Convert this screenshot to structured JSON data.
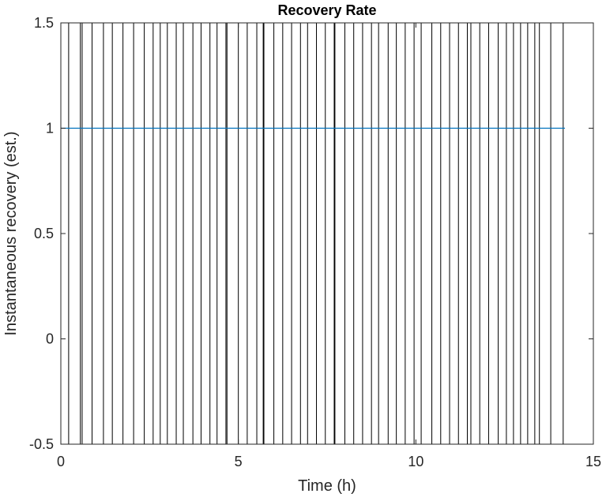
{
  "chart_data": {
    "type": "line",
    "title": "Recovery Rate",
    "xlabel": "Time (h)",
    "ylabel": "Instantaneous recovery (est.)",
    "xlim": [
      0,
      15
    ],
    "ylim": [
      -0.5,
      1.5
    ],
    "x_ticks": [
      0,
      5,
      10,
      15
    ],
    "x_tick_labels": [
      "0",
      "5",
      "10",
      "15"
    ],
    "y_ticks": [
      -0.5,
      0,
      0.5,
      1,
      1.5
    ],
    "y_tick_labels": [
      "-0.5",
      "0",
      "0.5",
      "1",
      "1.5"
    ],
    "grid": false,
    "box": true,
    "series": [
      {
        "x": [
          0,
          14.2
        ],
        "y": [
          1,
          1
        ],
        "color": "#0072BD"
      }
    ],
    "event_lines": {
      "color": "#000000",
      "x": [
        0.0,
        0.22,
        0.55,
        0.6,
        0.88,
        1.2,
        1.45,
        1.75,
        2.05,
        2.35,
        2.6,
        2.8,
        3.0,
        3.25,
        3.45,
        3.72,
        3.95,
        4.2,
        4.4,
        4.65,
        4.68,
        5.0,
        5.25,
        5.52,
        5.7,
        5.72,
        6.0,
        6.25,
        6.5,
        6.75,
        6.95,
        7.2,
        7.45,
        7.7,
        7.72,
        8.0,
        8.25,
        8.5,
        8.75,
        8.95,
        9.22,
        9.45,
        9.7,
        9.95,
        10.15,
        10.45,
        10.7,
        10.95,
        11.2,
        11.45,
        11.55,
        11.8,
        12.05,
        12.32,
        12.55,
        12.75,
        12.95,
        13.15,
        13.35,
        13.48,
        13.8,
        14.15
      ]
    }
  }
}
